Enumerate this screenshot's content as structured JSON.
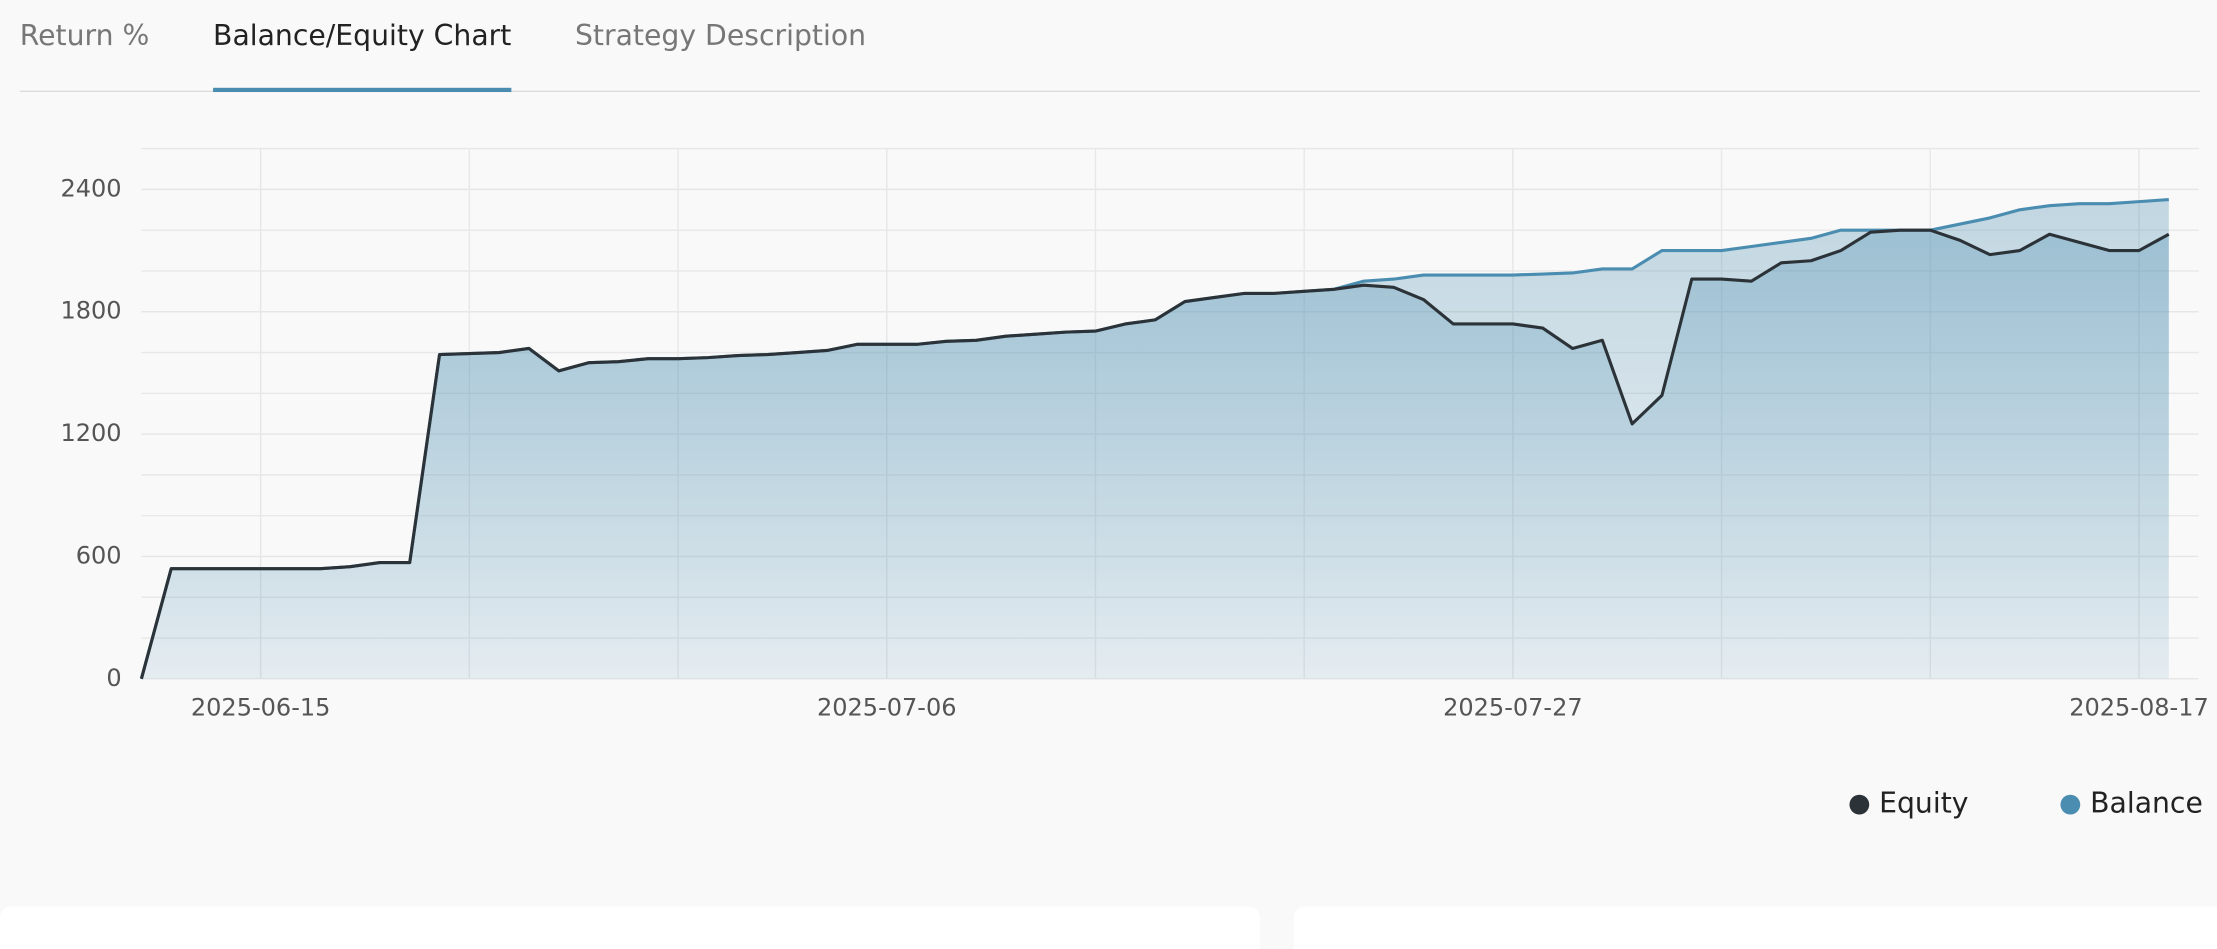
{
  "tabs": [
    "Return %",
    "Balance/Equity Chart",
    "Strategy Description"
  ],
  "active_tab": 1,
  "chart_data": {
    "type": "line",
    "x": [
      "2025-06-11",
      "2025-06-12",
      "2025-06-13",
      "2025-06-14",
      "2025-06-15",
      "2025-06-16",
      "2025-06-17",
      "2025-06-18",
      "2025-06-19",
      "2025-06-20",
      "2025-06-21",
      "2025-06-22",
      "2025-06-23",
      "2025-06-24",
      "2025-06-25",
      "2025-06-26",
      "2025-06-27",
      "2025-06-28",
      "2025-06-29",
      "2025-06-30",
      "2025-07-01",
      "2025-07-02",
      "2025-07-03",
      "2025-07-04",
      "2025-07-05",
      "2025-07-06",
      "2025-07-07",
      "2025-07-08",
      "2025-07-09",
      "2025-07-10",
      "2025-07-11",
      "2025-07-12",
      "2025-07-13",
      "2025-07-14",
      "2025-07-15",
      "2025-07-16",
      "2025-07-17",
      "2025-07-18",
      "2025-07-19",
      "2025-07-20",
      "2025-07-21",
      "2025-07-22",
      "2025-07-23",
      "2025-07-24",
      "2025-07-25",
      "2025-07-26",
      "2025-07-27",
      "2025-07-28",
      "2025-07-29",
      "2025-07-30",
      "2025-07-31",
      "2025-08-01",
      "2025-08-02",
      "2025-08-03",
      "2025-08-04",
      "2025-08-05",
      "2025-08-06",
      "2025-08-07",
      "2025-08-08",
      "2025-08-09",
      "2025-08-10",
      "2025-08-11",
      "2025-08-12",
      "2025-08-13",
      "2025-08-14",
      "2025-08-15",
      "2025-08-16",
      "2025-08-17",
      "2025-08-18"
    ],
    "series": [
      {
        "name": "Equity",
        "color": "#2b3238",
        "values": [
          0,
          540,
          540,
          540,
          540,
          540,
          540,
          550,
          570,
          570,
          1590,
          1595,
          1600,
          1620,
          1510,
          1550,
          1555,
          1570,
          1570,
          1575,
          1585,
          1590,
          1600,
          1610,
          1640,
          1640,
          1640,
          1655,
          1660,
          1680,
          1690,
          1700,
          1705,
          1740,
          1760,
          1850,
          1870,
          1890,
          1890,
          1900,
          1910,
          1930,
          1920,
          1860,
          1740,
          1740,
          1740,
          1720,
          1620,
          1660,
          1250,
          1390,
          1960,
          1960,
          1950,
          2040,
          2050,
          2100,
          2190,
          2200,
          2200,
          2150,
          2080,
          2100,
          2180,
          2140,
          2100,
          2100,
          2180
        ]
      },
      {
        "name": "Balance",
        "color": "#4a8db0",
        "values": [
          0,
          540,
          540,
          540,
          540,
          540,
          540,
          550,
          570,
          570,
          1590,
          1595,
          1600,
          1620,
          1510,
          1550,
          1555,
          1570,
          1570,
          1575,
          1585,
          1590,
          1600,
          1610,
          1640,
          1640,
          1640,
          1655,
          1660,
          1680,
          1690,
          1700,
          1705,
          1740,
          1760,
          1850,
          1870,
          1890,
          1890,
          1900,
          1910,
          1950,
          1960,
          1980,
          1980,
          1980,
          1980,
          1985,
          1990,
          2010,
          2010,
          2100,
          2100,
          2100,
          2120,
          2140,
          2160,
          2200,
          2200,
          2200,
          2200,
          2230,
          2260,
          2300,
          2320,
          2330,
          2330,
          2340,
          2350
        ]
      }
    ],
    "xlim": [
      "2025-06-11",
      "2025-08-19"
    ],
    "xticks": [
      "2025-06-15",
      "2025-07-06",
      "2025-07-27",
      "2025-08-17"
    ],
    "ylim": [
      0,
      2600
    ],
    "yticks": [
      0,
      600,
      1200,
      1800,
      2400
    ],
    "grid": true,
    "legend": "bottom-right"
  }
}
